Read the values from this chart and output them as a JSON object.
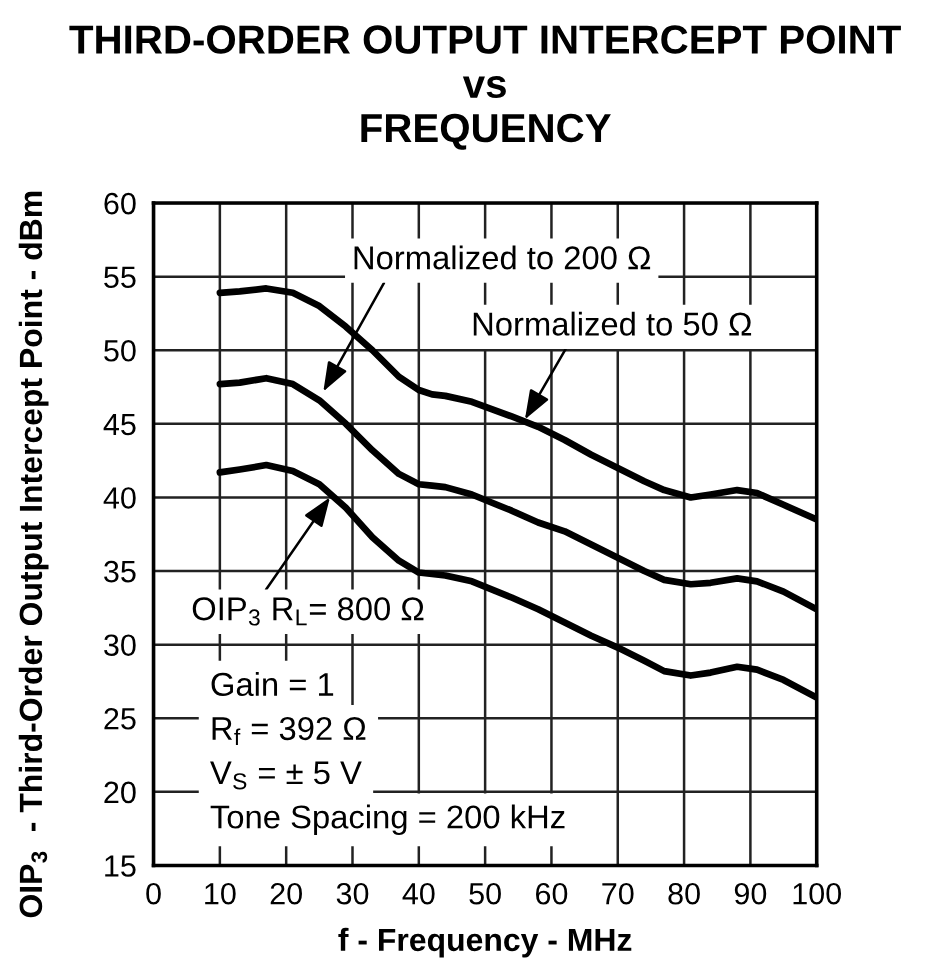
{
  "chart_data": {
    "type": "line",
    "title": "THIRD-ORDER OUTPUT INTERCEPT POINT\nvs\nFREQUENCY",
    "xlabel": "f - Frequency - MHz",
    "ylabel": "OIP$_{3}$  - Third-Order Output Intercept Point - dBm",
    "x": [
      10,
      13,
      17,
      21,
      25,
      29,
      33,
      37,
      40,
      42,
      44,
      48,
      54,
      58,
      62,
      66,
      70,
      74,
      77,
      81,
      84,
      88,
      91,
      95,
      100
    ],
    "series": [
      {
        "color": "#000000",
        "values": [
          53.9,
          54.0,
          54.2,
          53.9,
          53.0,
          51.6,
          50.0,
          48.2,
          47.3,
          47.0,
          46.9,
          46.5,
          45.5,
          44.8,
          43.9,
          42.9,
          42.0,
          41.1,
          40.5,
          40.0,
          40.2,
          40.5,
          40.3,
          39.5,
          38.5
        ]
      },
      {
        "color": "#000000",
        "values": [
          47.7,
          47.8,
          48.1,
          47.7,
          46.6,
          45.0,
          43.2,
          41.6,
          40.9,
          40.8,
          40.7,
          40.2,
          39.1,
          38.3,
          37.7,
          36.8,
          35.9,
          35.0,
          34.4,
          34.1,
          34.2,
          34.5,
          34.3,
          33.6,
          32.4
        ]
      },
      {
        "color": "#000000",
        "values": [
          41.7,
          41.9,
          42.2,
          41.8,
          40.9,
          39.3,
          37.3,
          35.7,
          34.9,
          34.8,
          34.7,
          34.3,
          33.2,
          32.4,
          31.5,
          30.6,
          29.8,
          28.9,
          28.2,
          27.9,
          28.1,
          28.5,
          28.3,
          27.6,
          26.4
        ]
      }
    ],
    "xlim": [
      0,
      100
    ],
    "ylim": [
      15,
      60
    ],
    "xticks": [
      0,
      10,
      20,
      30,
      40,
      50,
      60,
      70,
      80,
      90,
      100
    ],
    "yticks": [
      15,
      20,
      25,
      30,
      35,
      40,
      45,
      50,
      55,
      60
    ],
    "grid": true,
    "annotations": [
      {
        "text": "Normalized to 200 Ω",
        "x": 25.6,
        "y": 47.2
      },
      {
        "text": "Normalized to 50 Ω",
        "x": 56.0,
        "y": 45.3
      },
      {
        "text": "OIP$_{3}$ R$_{L}$= 800 Ω",
        "x": 26.6,
        "y": 40.0
      },
      "Gain = 1",
      "R$_{f}$ = 392 Ω",
      "V$_{S}$ = ± 5 V",
      "Tone Spacing = 200 kHz"
    ]
  }
}
